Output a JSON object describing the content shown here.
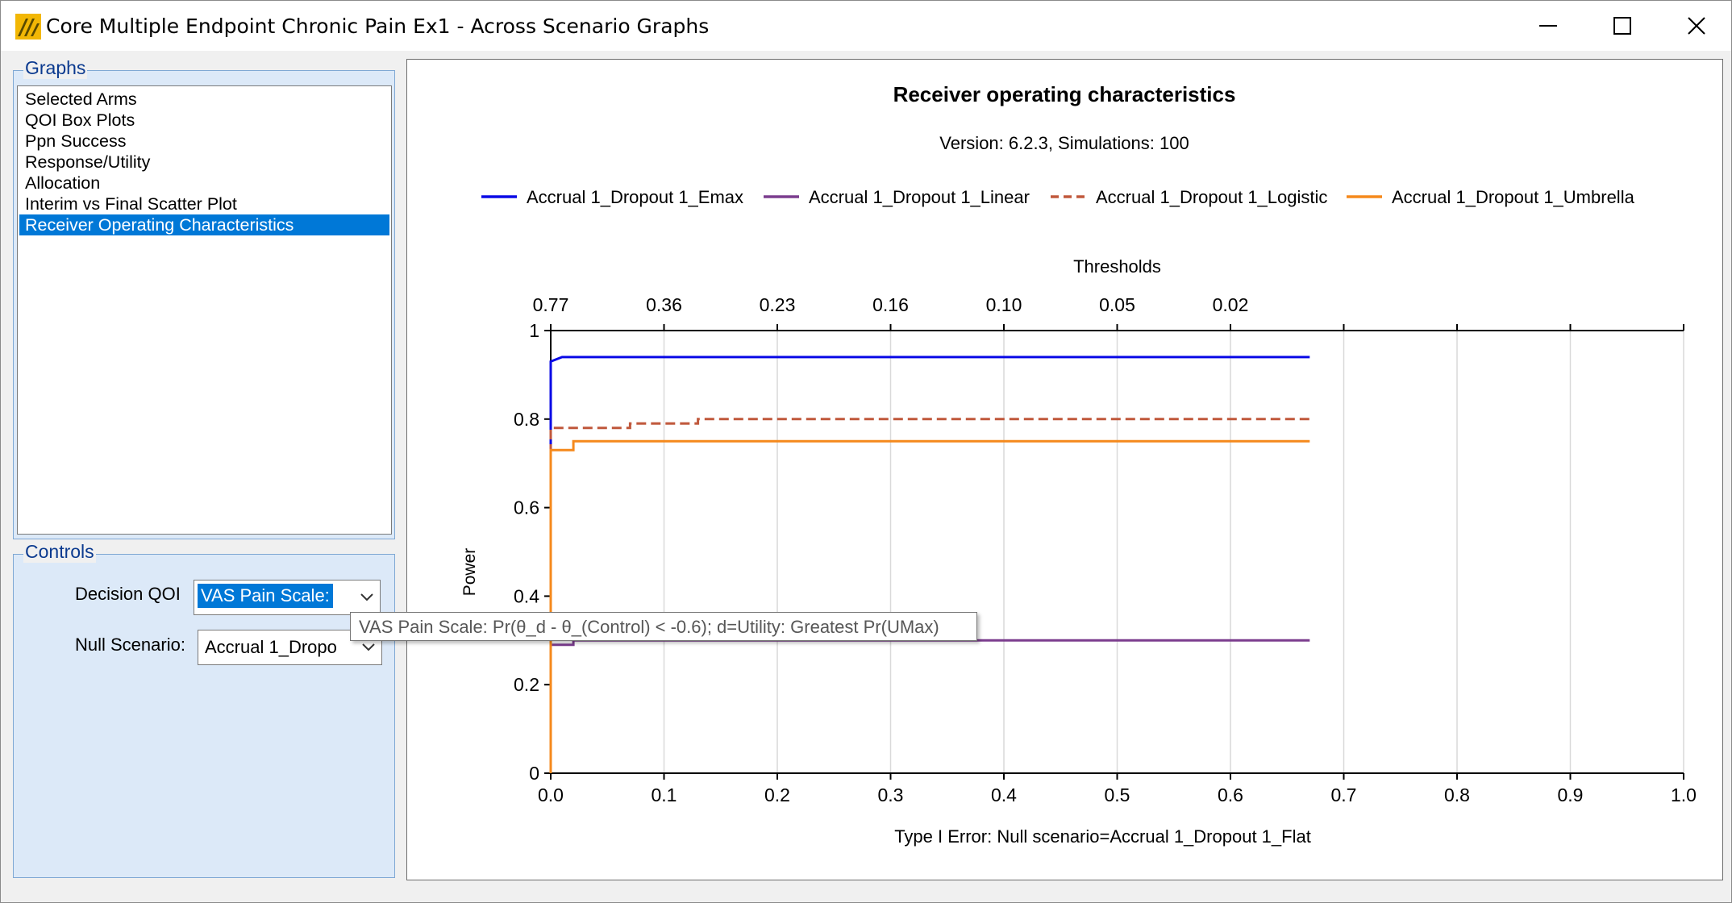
{
  "window": {
    "title": "Core Multiple Endpoint Chronic Pain Ex1 - Across Scenario Graphs",
    "app_icon": "facts-logo-icon",
    "controls": [
      "minimize-icon",
      "maximize-icon",
      "close-icon"
    ]
  },
  "graphs": {
    "legend": "Graphs",
    "items": [
      {
        "label": "Selected Arms",
        "selected": false
      },
      {
        "label": "QOI Box Plots",
        "selected": false
      },
      {
        "label": "Ppn Success",
        "selected": false
      },
      {
        "label": "Response/Utility",
        "selected": false
      },
      {
        "label": "Allocation",
        "selected": false
      },
      {
        "label": "Interim vs Final Scatter Plot",
        "selected": false
      },
      {
        "label": "Receiver Operating Characteristics",
        "selected": true
      }
    ]
  },
  "controls": {
    "legend": "Controls",
    "decision_qoi_label": "Decision QOI",
    "decision_qoi_value": "VAS Pain Scale:",
    "null_scenario_label": "Null Scenario:",
    "null_scenario_value": "Accrual 1_Dropo"
  },
  "tooltip": {
    "text": "VAS Pain Scale: Pr(θ_d - θ_(Control) < -0.6); d=Utility: Greatest Pr(UMax)"
  },
  "colors": {
    "selection": "#0078d7",
    "groupbox_bg": "#dce9f8",
    "groupbox_title": "#0b3a8f"
  },
  "chart_data": {
    "type": "line",
    "title": "Receiver operating characteristics",
    "subtitle": "Version: 6.2.3, Simulations: 100",
    "xlabel": "Type I Error: Null scenario=Accrual 1_Dropout 1_Flat",
    "ylabel": "Power",
    "xlim": [
      0,
      1.0
    ],
    "ylim": [
      0,
      1
    ],
    "x_ticks": [
      "0.0",
      "0.1",
      "0.2",
      "0.3",
      "0.4",
      "0.5",
      "0.6",
      "0.7",
      "0.8",
      "0.9",
      "1.0"
    ],
    "y_ticks": [
      "0",
      "0.2",
      "0.4",
      "0.6",
      "0.8",
      "1"
    ],
    "grid": "vertical",
    "top_axis": {
      "label": "Thresholds",
      "ticks": [
        {
          "x": 0.0,
          "label": "0.77"
        },
        {
          "x": 0.1,
          "label": "0.36"
        },
        {
          "x": 0.2,
          "label": "0.23"
        },
        {
          "x": 0.3,
          "label": "0.16"
        },
        {
          "x": 0.4,
          "label": "0.10"
        },
        {
          "x": 0.5,
          "label": "0.05"
        },
        {
          "x": 0.6,
          "label": "0.02"
        }
      ]
    },
    "legend_position": "top",
    "series": [
      {
        "name": "Accrual 1_Dropout 1_Emax",
        "color": "#0a0ae6",
        "style": "solid",
        "x": [
          0.0,
          0.0,
          0.01,
          0.01,
          0.67
        ],
        "y": [
          0.0,
          0.93,
          0.94,
          0.94,
          0.94
        ]
      },
      {
        "name": "Accrual 1_Dropout 1_Linear",
        "color": "#7b3d8e",
        "style": "solid",
        "x": [
          0.0,
          0.0,
          0.0,
          0.02,
          0.02,
          0.67
        ],
        "y": [
          0.1,
          0.28,
          0.29,
          0.29,
          0.3,
          0.3
        ]
      },
      {
        "name": "Accrual 1_Dropout 1_Logistic",
        "color": "#c0583c",
        "style": "dashed",
        "x": [
          0.0,
          0.0,
          0.07,
          0.07,
          0.12,
          0.13,
          0.13,
          0.67
        ],
        "y": [
          0.0,
          0.78,
          0.78,
          0.79,
          0.79,
          0.79,
          0.8,
          0.8
        ]
      },
      {
        "name": "Accrual 1_Dropout 1_Umbrella",
        "color": "#f5891c",
        "style": "solid",
        "x": [
          0.0,
          0.0,
          0.02,
          0.02,
          0.67
        ],
        "y": [
          0.0,
          0.73,
          0.73,
          0.75,
          0.75
        ]
      }
    ]
  }
}
